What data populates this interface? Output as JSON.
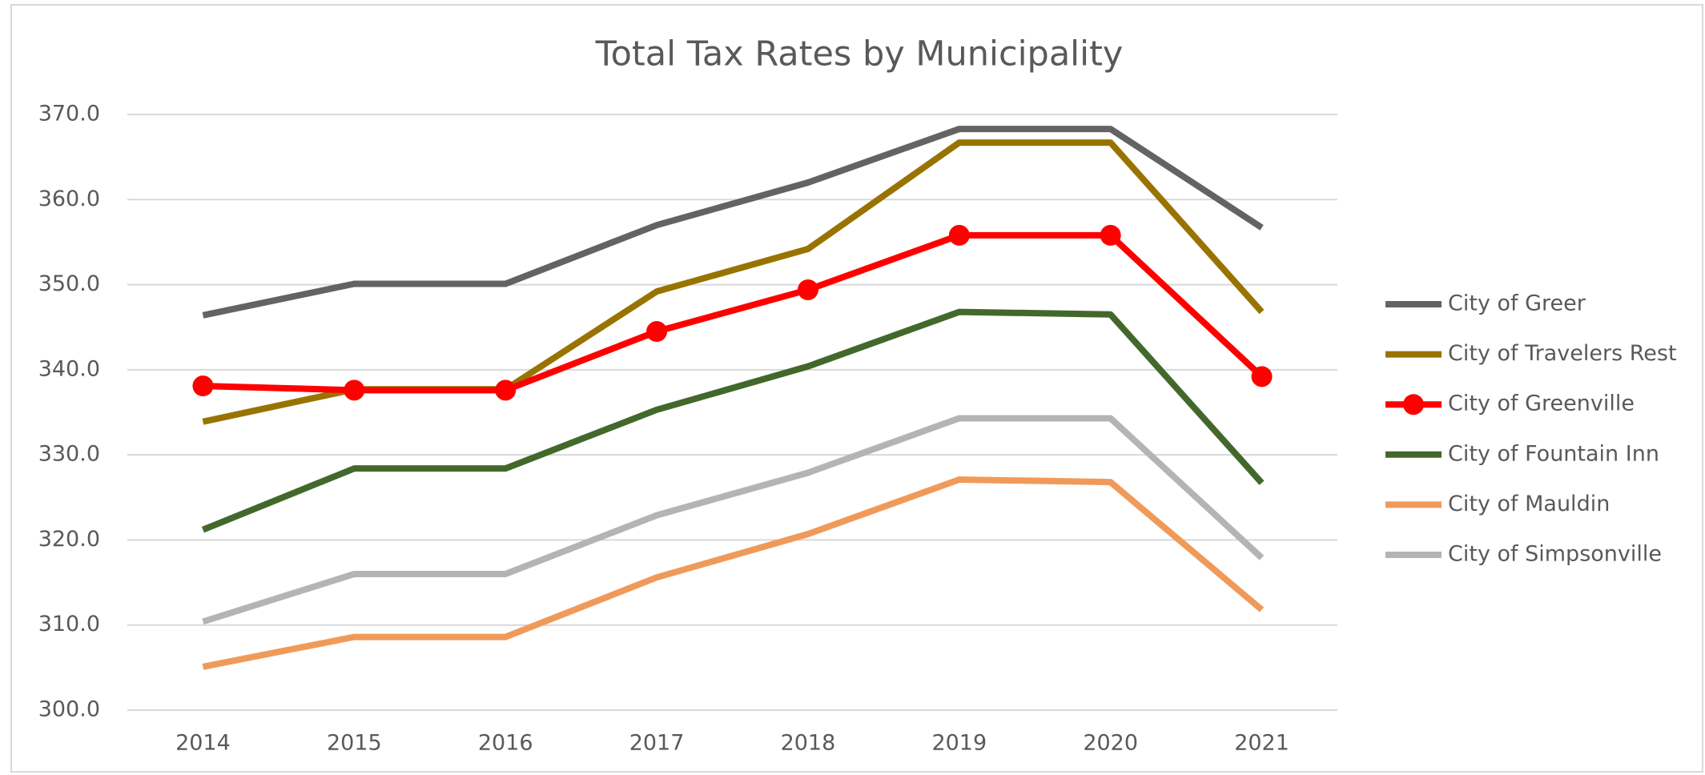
{
  "chart_data": {
    "type": "line",
    "title": "Total Tax Rates by Municipality",
    "categories": [
      "2014",
      "2015",
      "2016",
      "2017",
      "2018",
      "2019",
      "2020",
      "2021"
    ],
    "series": [
      {
        "name": "City of Greer",
        "color": "#636363",
        "values": [
          346.4,
          350.1,
          350.1,
          357.0,
          362.0,
          368.3,
          368.3,
          356.7
        ]
      },
      {
        "name": "City of Travelers Rest",
        "color": "#997300",
        "values": [
          333.9,
          337.7,
          337.7,
          349.2,
          354.2,
          366.7,
          366.7,
          346.8
        ]
      },
      {
        "name": "City of Greenville",
        "color": "#ff0000",
        "marker": true,
        "values": [
          338.1,
          337.6,
          337.6,
          344.5,
          349.4,
          355.8,
          355.8,
          339.2
        ]
      },
      {
        "name": "City of Fountain Inn",
        "color": "#43682b",
        "values": [
          321.2,
          328.4,
          328.4,
          335.3,
          340.4,
          346.8,
          346.5,
          326.7
        ]
      },
      {
        "name": "City of Mauldin",
        "color": "#f09a5a",
        "values": [
          305.1,
          308.6,
          308.6,
          315.6,
          320.7,
          327.1,
          326.8,
          311.8
        ]
      },
      {
        "name": "City of Simpsonville",
        "color": "#b4b4b4",
        "values": [
          310.4,
          316.0,
          316.0,
          322.9,
          327.9,
          334.3,
          334.3,
          317.9
        ]
      }
    ],
    "ylim": [
      300,
      370
    ],
    "yticks": [
      {
        "value": 300,
        "label": "300.0"
      },
      {
        "value": 310,
        "label": "310.0"
      },
      {
        "value": 320,
        "label": "320.0"
      },
      {
        "value": 330,
        "label": "330.0"
      },
      {
        "value": 340,
        "label": "340.0"
      },
      {
        "value": 350,
        "label": "350.0"
      },
      {
        "value": 360,
        "label": "360.0"
      },
      {
        "value": 370,
        "label": "370.0"
      }
    ],
    "grid": true,
    "legend": "right"
  }
}
